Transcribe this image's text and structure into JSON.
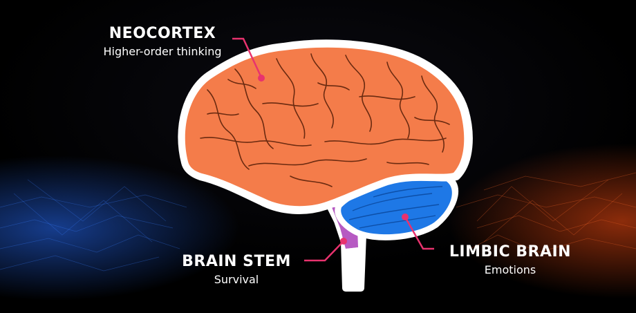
{
  "labels": {
    "neocortex": {
      "title": "NEOCORTEX",
      "subtitle": "Higher-order thinking"
    },
    "brain_stem": {
      "title": "BRAIN STEM",
      "subtitle": "Survival"
    },
    "limbic_brain": {
      "title": "LIMBIC BRAIN",
      "subtitle": "Emotions"
    }
  },
  "colors": {
    "neocortex": "#F47C4A",
    "limbic": "#1E78E6",
    "brain_stem": "#B65AC2",
    "pointer": "#E8326E",
    "outline": "#FFFFFF",
    "background": "#000000"
  }
}
